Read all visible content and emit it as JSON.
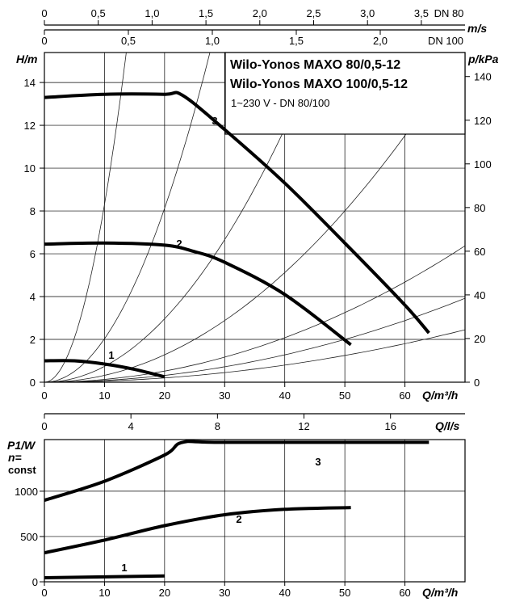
{
  "top_axis_1": {
    "ticks": [
      "0",
      "0,5",
      "1,0",
      "1,5",
      "2,0",
      "2,5",
      "3,0",
      "3,5"
    ],
    "unit_text": "DN 80",
    "label": "m/s"
  },
  "top_axis_2": {
    "ticks": [
      "0",
      "0,5",
      "1,0",
      "1,5",
      "2,0"
    ],
    "unit_text": "DN 100"
  },
  "titles": {
    "line1": "Wilo-Yonos MAXO 80/0,5-12",
    "line2": "Wilo-Yonos MAXO 100/0,5-12",
    "line3": "1~230 V - DN 80/100"
  },
  "ls_axis": {
    "ticks": [
      "0",
      "4",
      "8",
      "12",
      "16"
    ],
    "label": "Q/l/s"
  },
  "chart_data": [
    {
      "type": "line",
      "x_label": "Q/m³/h",
      "y_label": "H/m",
      "y2_label": "p/kPa",
      "xlim": [
        0,
        70
      ],
      "ylim": [
        0,
        15.4
      ],
      "y2lim": [
        0,
        151
      ],
      "x_ticks": [
        "0",
        "10",
        "20",
        "30",
        "40",
        "50",
        "60"
      ],
      "y_ticks": [
        "0",
        "2",
        "4",
        "6",
        "8",
        "10",
        "12",
        "14"
      ],
      "y2_ticks": [
        "0",
        "20",
        "40",
        "60",
        "80",
        "100",
        "120",
        "140"
      ],
      "grid": true,
      "series": [
        {
          "name": "1",
          "x": [
            0,
            5,
            10,
            15,
            20
          ],
          "y": [
            1.0,
            1.0,
            0.85,
            0.6,
            0.25
          ]
        },
        {
          "name": "2",
          "x": [
            0,
            10,
            20,
            25,
            30,
            40,
            51
          ],
          "y": [
            6.45,
            6.5,
            6.4,
            6.1,
            5.6,
            4.1,
            1.75
          ]
        },
        {
          "name": "3",
          "x": [
            0,
            10,
            20,
            23,
            30,
            40,
            50,
            60,
            64
          ],
          "y": [
            13.3,
            13.45,
            13.45,
            13.4,
            11.8,
            9.3,
            6.5,
            3.6,
            2.3
          ]
        }
      ],
      "system_curves_k": [
        0.0005,
        0.0008,
        0.0013,
        0.0032,
        0.0074,
        0.0203,
        0.083
      ]
    },
    {
      "type": "line",
      "x_label": "Q/m³/h",
      "y_label": "P1/W",
      "y_label_line2": "n=",
      "y_label_line3": "const",
      "xlim": [
        0,
        70
      ],
      "ylim": [
        0,
        1570
      ],
      "x_ticks": [
        "0",
        "10",
        "20",
        "30",
        "40",
        "50",
        "60"
      ],
      "y_ticks": [
        "0",
        "500",
        "1000"
      ],
      "grid": true,
      "series": [
        {
          "name": "1",
          "x": [
            0,
            20
          ],
          "y": [
            45,
            65
          ]
        },
        {
          "name": "2",
          "x": [
            0,
            10,
            20,
            30,
            40,
            51
          ],
          "y": [
            320,
            460,
            620,
            740,
            800,
            820
          ]
        },
        {
          "name": "3",
          "x": [
            0,
            10,
            20,
            23,
            30,
            64
          ],
          "y": [
            900,
            1110,
            1400,
            1540,
            1540,
            1540
          ]
        }
      ]
    }
  ]
}
